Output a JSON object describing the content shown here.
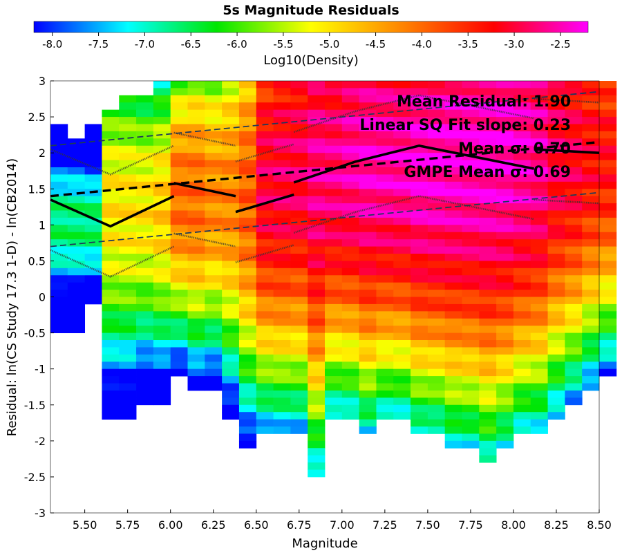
{
  "chart_data": {
    "type": "heatmap",
    "title": "5s Magnitude Residuals",
    "xlabel": "Magnitude",
    "ylabel": "Residual: ln(CS Study 17.3 1-D) - ln(CB2014)",
    "xlim": [
      5.3,
      8.5
    ],
    "ylim": [
      -3,
      3
    ],
    "x_ticks": [
      "5.50",
      "5.75",
      "6.00",
      "6.25",
      "6.50",
      "6.75",
      "7.00",
      "7.25",
      "7.50",
      "7.75",
      "8.00",
      "8.25",
      "8.50"
    ],
    "y_ticks": [
      "3",
      "2.5",
      "2",
      "1.5",
      "1",
      "0.5",
      "0",
      "-0.5",
      "-1",
      "-1.5",
      "-2",
      "-2.5",
      "-3"
    ],
    "colorbar": {
      "label": "Log10(Density)",
      "range": [
        -8.2,
        -2.2
      ],
      "ticks": [
        "-8.0",
        "-7.5",
        "-7.0",
        "-6.5",
        "-6.0",
        "-5.5",
        "-5.0",
        "-4.5",
        "-4.0",
        "-3.5",
        "-3.0",
        "-2.5"
      ]
    },
    "grid": false,
    "annotations": [
      "Mean Residual: 1.90",
      "Linear SQ Fit slope: 0.23",
      "Mean σ: 0.70",
      "GMPE Mean σ: 0.69"
    ],
    "heatmap": {
      "x_start": 5.3,
      "x_step": 0.1,
      "y_top": 3.0,
      "y_step": 0.1,
      "columns": [
        {
          "top": 2.4,
          "bottom": -0.5,
          "peak": 1.0,
          "pv": -6.6
        },
        {
          "top": 2.2,
          "bottom": -0.5,
          "peak": 1.0,
          "pv": -6.6
        },
        {
          "top": 2.4,
          "bottom": -0.1,
          "peak": 1.0,
          "pv": -6.6
        },
        {
          "top": 2.6,
          "bottom": -1.7,
          "peak": 1.2,
          "pv": -5.0
        },
        {
          "top": 2.8,
          "bottom": -1.7,
          "peak": 1.2,
          "pv": -5.0
        },
        {
          "top": 2.8,
          "bottom": -1.5,
          "peak": 1.2,
          "pv": -5.0
        },
        {
          "top": 3.0,
          "bottom": -1.5,
          "peak": 1.2,
          "pv": -4.8
        },
        {
          "top": 3.0,
          "bottom": -1.1,
          "peak": 1.4,
          "pv": -4.0
        },
        {
          "top": 3.0,
          "bottom": -1.3,
          "peak": 1.4,
          "pv": -4.0
        },
        {
          "top": 3.0,
          "bottom": -1.3,
          "peak": 1.4,
          "pv": -4.2
        },
        {
          "top": 3.0,
          "bottom": -1.7,
          "peak": 1.4,
          "pv": -4.2
        },
        {
          "top": 3.0,
          "bottom": -2.1,
          "peak": 1.4,
          "pv": -3.9
        },
        {
          "top": 3.0,
          "bottom": -1.9,
          "peak": 1.6,
          "pv": -3.0
        },
        {
          "top": 3.0,
          "bottom": -1.9,
          "peak": 1.7,
          "pv": -2.9
        },
        {
          "top": 3.0,
          "bottom": -1.9,
          "peak": 1.8,
          "pv": -2.9
        },
        {
          "top": 3.0,
          "bottom": -2.5,
          "peak": 1.8,
          "pv": -2.7
        },
        {
          "top": 3.0,
          "bottom": -1.7,
          "peak": 1.8,
          "pv": -2.7
        },
        {
          "top": 3.0,
          "bottom": -1.7,
          "peak": 1.9,
          "pv": -2.6
        },
        {
          "top": 3.0,
          "bottom": -1.9,
          "peak": 1.9,
          "pv": -2.5
        },
        {
          "top": 3.0,
          "bottom": -1.7,
          "peak": 1.9,
          "pv": -2.5
        },
        {
          "top": 3.0,
          "bottom": -1.7,
          "peak": 1.9,
          "pv": -2.5
        },
        {
          "top": 3.0,
          "bottom": -1.9,
          "peak": 1.9,
          "pv": -2.4
        },
        {
          "top": 3.0,
          "bottom": -1.9,
          "peak": 1.9,
          "pv": -2.4
        },
        {
          "top": 3.0,
          "bottom": -2.1,
          "peak": 2.0,
          "pv": -2.4
        },
        {
          "top": 3.0,
          "bottom": -2.1,
          "peak": 2.0,
          "pv": -2.4
        },
        {
          "top": 3.0,
          "bottom": -2.3,
          "peak": 2.0,
          "pv": -2.4
        },
        {
          "top": 3.0,
          "bottom": -2.1,
          "peak": 2.0,
          "pv": -2.4
        },
        {
          "top": 3.0,
          "bottom": -1.9,
          "peak": 2.0,
          "pv": -2.5
        },
        {
          "top": 3.0,
          "bottom": -1.9,
          "peak": 2.0,
          "pv": -2.6
        },
        {
          "top": 3.0,
          "bottom": -1.7,
          "peak": 2.0,
          "pv": -2.9
        },
        {
          "top": 3.0,
          "bottom": -1.5,
          "peak": 2.0,
          "pv": -3.0
        },
        {
          "top": 3.0,
          "bottom": -1.3,
          "peak": 2.0,
          "pv": -3.2
        },
        {
          "top": 3.0,
          "bottom": -1.1,
          "peak": 2.0,
          "pv": -3.3
        }
      ]
    },
    "series": [
      {
        "style": "solid-thick",
        "segments": [
          [
            [
              5.3,
              1.35
            ],
            [
              5.65,
              0.98
            ],
            [
              6.02,
              1.4
            ]
          ],
          [
            [
              6.02,
              1.58
            ],
            [
              6.38,
              1.4
            ]
          ],
          [
            [
              6.38,
              1.18
            ],
            [
              6.72,
              1.42
            ]
          ],
          [
            [
              6.72,
              1.59
            ],
            [
              7.08,
              1.88
            ],
            [
              7.45,
              2.1
            ],
            [
              8.12,
              1.78
            ]
          ],
          [
            [
              8.12,
              2.05
            ],
            [
              8.5,
              2.0
            ]
          ]
        ]
      },
      {
        "style": "dashed-thick",
        "segments": [
          [
            [
              5.3,
              1.4
            ],
            [
              8.5,
              2.15
            ]
          ]
        ]
      },
      {
        "style": "dashed-thin",
        "segments": [
          [
            [
              5.3,
              2.1
            ],
            [
              8.5,
              2.85
            ]
          ],
          [
            [
              5.3,
              0.7
            ],
            [
              8.5,
              1.45
            ]
          ]
        ]
      },
      {
        "style": "dotted",
        "segments": [
          [
            [
              5.3,
              2.05
            ],
            [
              5.65,
              1.7
            ],
            [
              6.02,
              2.1
            ]
          ],
          [
            [
              6.02,
              2.28
            ],
            [
              6.38,
              2.1
            ]
          ],
          [
            [
              6.38,
              1.88
            ],
            [
              6.72,
              2.12
            ]
          ],
          [
            [
              6.72,
              2.29
            ],
            [
              7.08,
              2.58
            ],
            [
              7.45,
              2.8
            ],
            [
              8.12,
              2.48
            ]
          ],
          [
            [
              8.12,
              2.75
            ],
            [
              8.5,
              2.7
            ]
          ],
          [
            [
              5.3,
              0.65
            ],
            [
              5.65,
              0.28
            ],
            [
              6.02,
              0.7
            ]
          ],
          [
            [
              6.02,
              0.88
            ],
            [
              6.38,
              0.7
            ]
          ],
          [
            [
              6.38,
              0.48
            ],
            [
              6.72,
              0.72
            ]
          ],
          [
            [
              6.72,
              0.89
            ],
            [
              7.08,
              1.18
            ],
            [
              7.45,
              1.4
            ],
            [
              8.12,
              1.08
            ]
          ],
          [
            [
              8.12,
              1.35
            ],
            [
              8.5,
              1.3
            ]
          ]
        ]
      }
    ]
  }
}
